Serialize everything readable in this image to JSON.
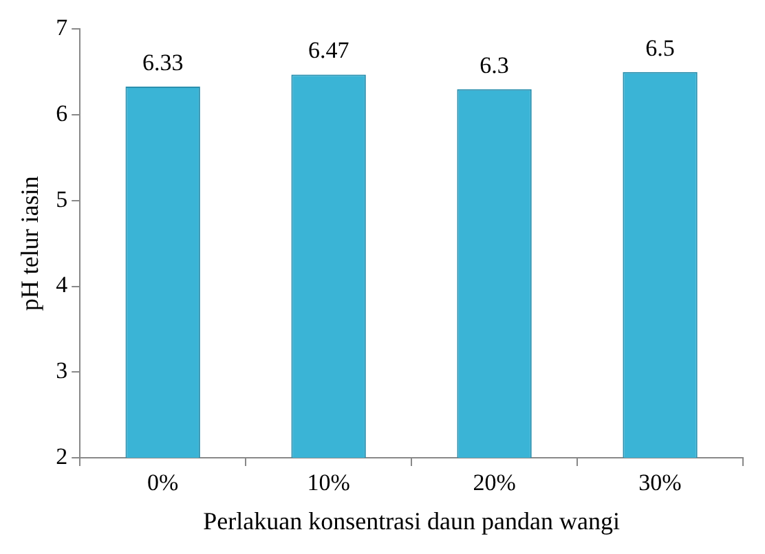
{
  "chart_data": {
    "type": "bar",
    "xlabel": "Perlakuan konsentrasi daun pandan wangi",
    "ylabel": "pH telur iasin",
    "categories": [
      "0%",
      "10%",
      "20%",
      "30%"
    ],
    "values": [
      6.33,
      6.47,
      6.3,
      6.5
    ],
    "color": "#3ab4d6",
    "ylim": [
      2,
      7
    ],
    "yticks": [
      2,
      3,
      4,
      5,
      6,
      7
    ],
    "grid": false,
    "legend": false,
    "data_labels": true
  }
}
